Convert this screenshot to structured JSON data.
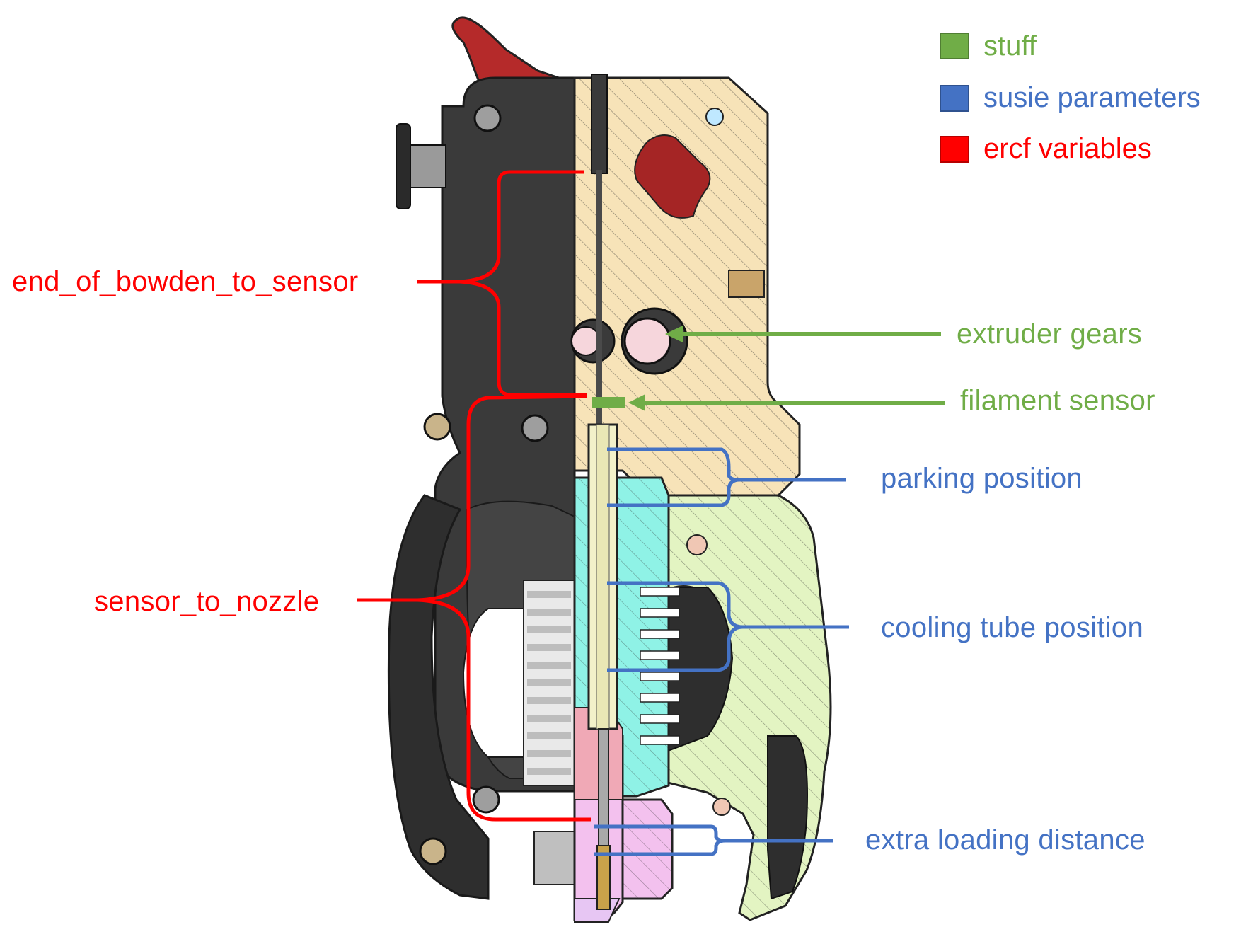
{
  "legend": [
    {
      "label": "stuff",
      "color": "#70ad47"
    },
    {
      "label": "susie parameters",
      "color": "#4472c4"
    },
    {
      "label": "ercf variables",
      "color": "#ff0000"
    }
  ],
  "labels": {
    "end_of_bowden_to_sensor": "end_of_bowden_to_sensor",
    "sensor_to_nozzle": "sensor_to_nozzle",
    "extruder_gears": "extruder gears",
    "filament_sensor": "filament sensor",
    "parking_position": "parking position",
    "cooling_tube_position": "cooling tube position",
    "extra_loading_distance": "extra loading distance"
  },
  "colors": {
    "red": "#ff0000",
    "green": "#70ad47",
    "blue": "#4472c4",
    "body_dark": "#3a3a3a",
    "lever": "#b52a2a",
    "section_yellow": "#f7e3b8",
    "section_green": "#e3f4c2",
    "heatbreak_cyan": "#8ff2e6",
    "nozzle_pink": "#f3c1ee"
  }
}
